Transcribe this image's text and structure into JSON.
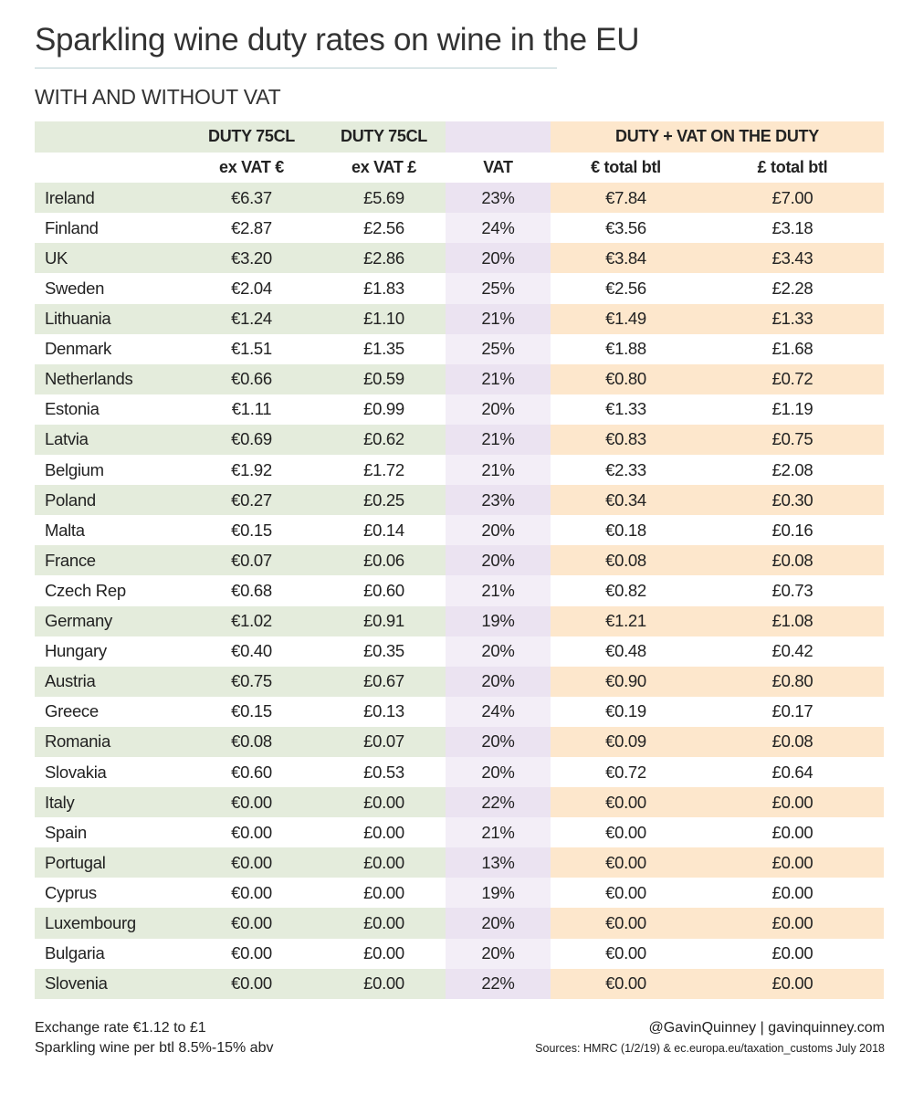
{
  "title": "Sparkling wine duty rates on wine in the EU",
  "subtitle": "WITH AND WITHOUT VAT",
  "header1": [
    "",
    "DUTY 75CL",
    "DUTY 75CL",
    "",
    "DUTY + VAT ON THE DUTY"
  ],
  "header2": [
    "",
    "ex VAT €",
    "ex VAT £",
    "VAT",
    "€ total btl",
    "£ total btl"
  ],
  "rows": [
    [
      "Ireland",
      "€6.37",
      "£5.69",
      "23%",
      "€7.84",
      "£7.00"
    ],
    [
      "Finland",
      "€2.87",
      "£2.56",
      "24%",
      "€3.56",
      "£3.18"
    ],
    [
      "UK",
      "€3.20",
      "£2.86",
      "20%",
      "€3.84",
      "£3.43"
    ],
    [
      "Sweden",
      "€2.04",
      "£1.83",
      "25%",
      "€2.56",
      "£2.28"
    ],
    [
      "Lithuania",
      "€1.24",
      "£1.10",
      "21%",
      "€1.49",
      "£1.33"
    ],
    [
      "Denmark",
      "€1.51",
      "£1.35",
      "25%",
      "€1.88",
      "£1.68"
    ],
    [
      "Netherlands",
      "€0.66",
      "£0.59",
      "21%",
      "€0.80",
      "£0.72"
    ],
    [
      "Estonia",
      "€1.11",
      "£0.99",
      "20%",
      "€1.33",
      "£1.19"
    ],
    [
      "Latvia",
      "€0.69",
      "£0.62",
      "21%",
      "€0.83",
      "£0.75"
    ],
    [
      "Belgium",
      "€1.92",
      "£1.72",
      "21%",
      "€2.33",
      "£2.08"
    ],
    [
      "Poland",
      "€0.27",
      "£0.25",
      "23%",
      "€0.34",
      "£0.30"
    ],
    [
      "Malta",
      "€0.15",
      "£0.14",
      "20%",
      "€0.18",
      "£0.16"
    ],
    [
      "France",
      "€0.07",
      "£0.06",
      "20%",
      "€0.08",
      "£0.08"
    ],
    [
      "Czech Rep",
      "€0.68",
      "£0.60",
      "21%",
      "€0.82",
      "£0.73"
    ],
    [
      "Germany",
      "€1.02",
      "£0.91",
      "19%",
      "€1.21",
      "£1.08"
    ],
    [
      "Hungary",
      "€0.40",
      "£0.35",
      "20%",
      "€0.48",
      "£0.42"
    ],
    [
      "Austria",
      "€0.75",
      "£0.67",
      "20%",
      "€0.90",
      "£0.80"
    ],
    [
      "Greece",
      "€0.15",
      "£0.13",
      "24%",
      "€0.19",
      "£0.17"
    ],
    [
      "Romania",
      "€0.08",
      "£0.07",
      "20%",
      "€0.09",
      "£0.08"
    ],
    [
      "Slovakia",
      "€0.60",
      "£0.53",
      "20%",
      "€0.72",
      "£0.64"
    ],
    [
      "Italy",
      "€0.00",
      "£0.00",
      "22%",
      "€0.00",
      "£0.00"
    ],
    [
      "Spain",
      "€0.00",
      "£0.00",
      "21%",
      "€0.00",
      "£0.00"
    ],
    [
      "Portugal",
      "€0.00",
      "£0.00",
      "13%",
      "€0.00",
      "£0.00"
    ],
    [
      "Cyprus",
      "€0.00",
      "£0.00",
      "19%",
      "€0.00",
      "£0.00"
    ],
    [
      "Luxembourg",
      "€0.00",
      "£0.00",
      "20%",
      "€0.00",
      "£0.00"
    ],
    [
      "Bulgaria",
      "€0.00",
      "£0.00",
      "20%",
      "€0.00",
      "£0.00"
    ],
    [
      "Slovenia",
      "€0.00",
      "£0.00",
      "22%",
      "€0.00",
      "£0.00"
    ]
  ],
  "footer": {
    "exchange_rate": "Exchange rate €1.12 to £1",
    "abv_note": "Sparkling wine per btl 8.5%-15% abv",
    "credit": "@GavinQuinney |  gavinquinney.com",
    "sources": "Sources: HMRC (1/2/19) & ec.europa.eu/taxation_customs July 2018"
  },
  "colors": {
    "green_band": "#e4ecdc",
    "purple_band": "#ebe3f1",
    "orange_band": "#fde7cc"
  }
}
